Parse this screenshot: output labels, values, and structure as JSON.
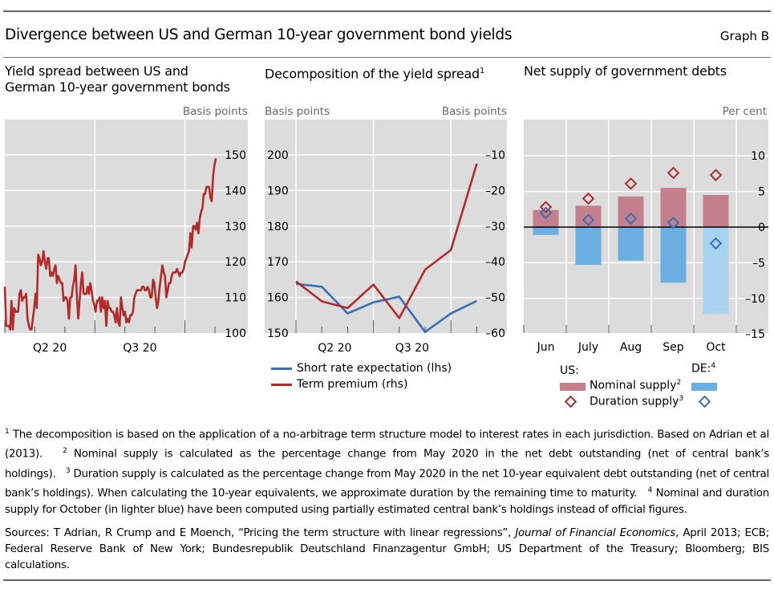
{
  "header": {
    "title": "Divergence between US and German 10-year government bond yields",
    "graph_label": "Graph B"
  },
  "panels": {
    "p1": {
      "title_line1": "Yield spread between US and",
      "title_line2": "German 10-year government bonds",
      "unit_right": "Basis points"
    },
    "p2": {
      "title": "Decomposition of the yield spread",
      "title_sup": "1",
      "unit_left": "Basis points",
      "unit_right": "Basis points"
    },
    "p3": {
      "title": "Net supply of government debts",
      "unit_right": "Per cent"
    }
  },
  "legends": {
    "p2": [
      {
        "label": "Short rate expectation (lhs)",
        "color": "#3a6fb5"
      },
      {
        "label": "Term premium (rhs)",
        "color": "#b22b2b"
      }
    ],
    "p3": {
      "us_label": "US:",
      "de_label": "DE:",
      "de_sup": "4",
      "nominal_label": "Nominal supply",
      "nominal_sup": "2",
      "duration_label": "Duration supply",
      "duration_sup": "3"
    }
  },
  "chart_data": [
    {
      "type": "line",
      "title": "Yield spread between US and German 10-year government bonds",
      "ylabel": "Basis points",
      "yaxis_side": "right",
      "ylim": [
        100,
        150
      ],
      "yticks": [
        100,
        110,
        120,
        130,
        140,
        150
      ],
      "xtick_labels": [
        "Q2 20",
        "Q3 20"
      ],
      "x_range_months": [
        "Mar 2020",
        "Oct 2020"
      ],
      "grid": true,
      "series": [
        {
          "name": "Yield spread",
          "color": "#b22b2b",
          "values": [
            113,
            102,
            102,
            102,
            101,
            109,
            101,
            107,
            106,
            106,
            106,
            111,
            112,
            109,
            110,
            110,
            111,
            104,
            102,
            101,
            101,
            104,
            107,
            111,
            107,
            122,
            121,
            119,
            120,
            123,
            120,
            118,
            121,
            121,
            116,
            117,
            116,
            118,
            119,
            114,
            116,
            115,
            114,
            114,
            109,
            110,
            110,
            109,
            104,
            110,
            110,
            113,
            115,
            119,
            110,
            104,
            109,
            114,
            117,
            111,
            111,
            111,
            113,
            111,
            114,
            112,
            109,
            108,
            106,
            109,
            109,
            110,
            106,
            110,
            107,
            109,
            102,
            109,
            107,
            107,
            106,
            106,
            105,
            103,
            107,
            103,
            102,
            110,
            107,
            105,
            106,
            103,
            104,
            103,
            105,
            105,
            106,
            110,
            111,
            112,
            112,
            112,
            112,
            113,
            113,
            112,
            112,
            113,
            112,
            110,
            110,
            115,
            114,
            110,
            107,
            109,
            113,
            116,
            119,
            117,
            116,
            110,
            112,
            114,
            114,
            116,
            117,
            117,
            117,
            118,
            117,
            116,
            117,
            117,
            118,
            120,
            121,
            122,
            123,
            128,
            124,
            130,
            130,
            129,
            131,
            128,
            132,
            134,
            135,
            139,
            139,
            141,
            141,
            141,
            138,
            137,
            144,
            147,
            149
          ]
        }
      ]
    },
    {
      "type": "line",
      "title": "Decomposition of the yield spread",
      "ylabel_left": "Basis points",
      "ylabel_right": "Basis points",
      "ylim_left": [
        150,
        200
      ],
      "ylim_right": [
        -60,
        -10
      ],
      "yticks_left": [
        150,
        160,
        170,
        180,
        190,
        200
      ],
      "yticks_right": [
        -60,
        -50,
        -40,
        -30,
        -20,
        -10
      ],
      "xtick_labels": [
        "Q2 20",
        "Q3 20"
      ],
      "x": [
        "Mar",
        "Apr",
        "May",
        "Jun",
        "Jul",
        "Aug",
        "Sep",
        "Oct"
      ],
      "grid": true,
      "series": [
        {
          "name": "Short rate expectation (lhs)",
          "axis": "left",
          "color": "#3a6fb5",
          "values": [
            163.8,
            163.0,
            155.5,
            158.6,
            160.2,
            150.3,
            155.5,
            159.0
          ]
        },
        {
          "name": "Term premium (rhs)",
          "axis": "right",
          "color": "#b22b2b",
          "values": [
            -45.5,
            -51.1,
            -53.0,
            -46.4,
            -55.8,
            -42.2,
            -36.7,
            -12.5
          ]
        }
      ],
      "legend": "bottom"
    },
    {
      "type": "bar",
      "title": "Net supply of government debts",
      "ylabel": "Per cent",
      "ylim": [
        -15,
        13
      ],
      "yticks": [
        -15,
        -10,
        -5,
        0,
        5,
        10
      ],
      "categories": [
        "Jun",
        "July",
        "Aug",
        "Sep",
        "Oct"
      ],
      "grid": true,
      "series": [
        {
          "name": "US Nominal supply",
          "kind": "bar",
          "color": "#c47f8c",
          "values": [
            2.4,
            3.0,
            4.3,
            5.5,
            4.5
          ]
        },
        {
          "name": "DE Nominal supply",
          "kind": "bar",
          "color": "#6aaee2",
          "color_estimated": "#a8d4f2",
          "values": [
            -1.1,
            -5.3,
            -4.7,
            -7.8,
            -12.2
          ],
          "estimated": [
            false,
            false,
            false,
            false,
            true
          ]
        },
        {
          "name": "US Duration supply",
          "kind": "diamond",
          "color": "#b22b2b",
          "values": [
            2.8,
            4.0,
            6.1,
            7.6,
            7.3
          ]
        },
        {
          "name": "DE Duration supply",
          "kind": "diamond",
          "color": "#3a6fb5",
          "values": [
            2.0,
            1.0,
            1.2,
            0.6,
            -2.3
          ]
        }
      ],
      "legend": "bottom"
    }
  ],
  "footnotes": {
    "n1_sup": "1",
    "n1": "The decomposition is based on the application of a no-arbitrage term structure model to interest rates in each jurisdiction. Based on Adrian et al (2013).",
    "n2_sup": "2",
    "n2": "Nominal supply is calculated as the percentage change from May 2020 in the net debt outstanding (net of central bank’s holdings).",
    "n3_sup": "3",
    "n3": "Duration supply is calculated as the percentage change from May 2020 in the net 10-year equivalent debt outstanding (net of central bank’s holdings). When calculating the 10-year equivalents, we approximate duration by the remaining time to maturity.",
    "n4_sup": "4",
    "n4": "Nominal and duration supply for October (in lighter blue) have been computed using partially estimated central bank’s holdings instead of official figures."
  },
  "sources": {
    "prefix": "Sources: T Adrian, R Crump and E Moench, “Pricing the term structure with linear regressions”, ",
    "journal": "Journal of Financial Economics",
    "suffix": ", April 2013; ECB; Federal Reserve Bank of New York; Bundesrepublik Deutschland Finanzagentur GmbH; US Department of the Treasury; Bloomberg; BIS calculations."
  }
}
